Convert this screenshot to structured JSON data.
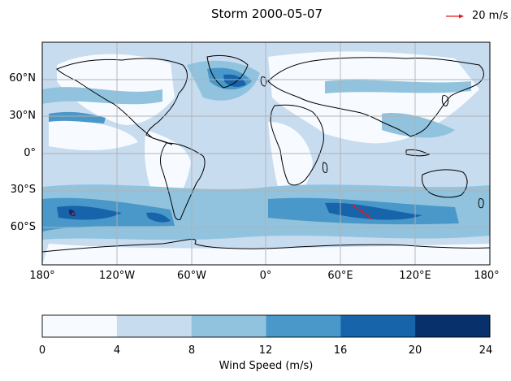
{
  "title": "Storm 2000-05-07",
  "quiver_key": {
    "label": "20 m/s",
    "color": "#e31a1c"
  },
  "map": {
    "projection": "PlateCarree",
    "lon_range": [
      -180,
      180
    ],
    "lat_range": [
      -90,
      90
    ],
    "x_ticks": [
      "180°",
      "120°W",
      "60°W",
      "0°",
      "60°E",
      "120°E",
      "180°"
    ],
    "y_ticks": [
      "60°N",
      "30°N",
      "0°",
      "30°S",
      "60°S"
    ],
    "grid": true,
    "storm_track_color": "#e31a1c"
  },
  "colorbar": {
    "label": "Wind Speed (m/s)",
    "ticks": [
      "0",
      "4",
      "8",
      "12",
      "16",
      "20",
      "24"
    ],
    "levels": [
      0,
      4,
      8,
      12,
      16,
      20,
      24
    ],
    "colors": [
      "#f7fbff",
      "#c8dcf0",
      "#91c3de",
      "#4a98c9",
      "#1764ab",
      "#08306b"
    ],
    "orientation": "horizontal"
  }
}
